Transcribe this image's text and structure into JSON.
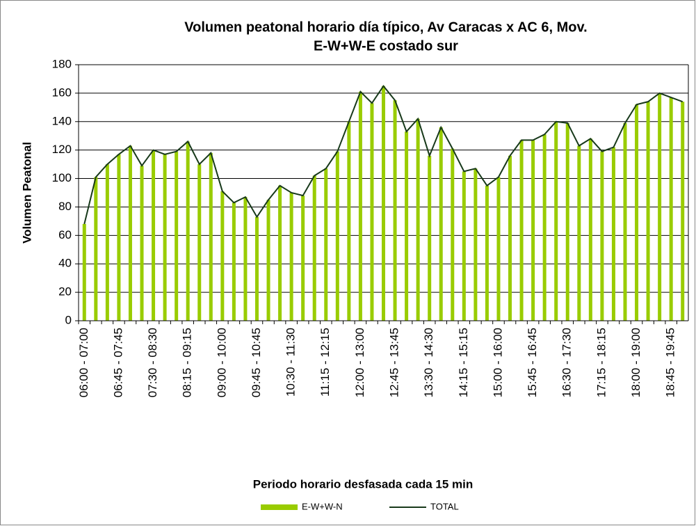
{
  "chart_data": {
    "type": "bar",
    "title": [
      "Volumen peatonal horario  día  típico, Av Caracas x AC 6, Mov.",
      "E-W+W-E costado sur"
    ],
    "x_label": "Periodo horario desfasada cada 15 min",
    "y_label": "Volumen  Peatonal",
    "categories": [
      "06:00 - 07:00",
      null,
      null,
      "06:45 - 07:45",
      null,
      null,
      "07:30 - 08:30",
      null,
      null,
      "08:15 - 09:15",
      null,
      null,
      "09:00 - 10:00",
      null,
      null,
      "09:45 - 10:45",
      null,
      null,
      "10:30 - 11:30",
      null,
      null,
      "11:15 - 12:15",
      null,
      null,
      "12:00 - 13:00",
      null,
      null,
      "12:45 - 13:45",
      null,
      null,
      "13:30 - 14:30",
      null,
      null,
      "14:15 - 15:15",
      null,
      null,
      "15:00 - 16:00",
      null,
      null,
      "15:45 - 16:45",
      null,
      null,
      "16:30 - 17:30",
      null,
      null,
      "17:15 - 18:15",
      null,
      null,
      "18:00 - 19:00",
      null,
      null,
      "18:45 - 19:45",
      null
    ],
    "series": [
      {
        "name": "E-W+W-N",
        "type": "bar",
        "color": "#99cc00",
        "values": [
          68,
          101,
          110,
          117,
          123,
          109,
          120,
          117,
          119,
          126,
          110,
          118,
          91,
          83,
          87,
          73,
          85,
          95,
          90,
          88,
          102,
          107,
          119,
          140,
          161,
          153,
          165,
          155,
          133,
          142,
          116,
          136,
          121,
          105,
          107,
          95,
          101,
          116,
          127,
          127,
          131,
          140,
          139,
          123,
          128,
          119,
          122,
          139,
          152,
          154,
          160,
          157,
          154
        ]
      },
      {
        "name": "TOTAL",
        "type": "line",
        "color": "#17391a",
        "values": [
          68,
          101,
          110,
          117,
          123,
          109,
          120,
          117,
          119,
          126,
          110,
          118,
          91,
          83,
          87,
          73,
          85,
          95,
          90,
          88,
          102,
          107,
          119,
          140,
          161,
          153,
          165,
          155,
          133,
          142,
          116,
          136,
          121,
          105,
          107,
          95,
          101,
          116,
          127,
          127,
          131,
          140,
          139,
          123,
          128,
          119,
          122,
          139,
          152,
          154,
          160,
          157,
          154
        ]
      }
    ],
    "ylim": [
      0,
      180
    ],
    "yticks": [
      0,
      20,
      40,
      60,
      80,
      100,
      120,
      140,
      160,
      180
    ],
    "grid": true,
    "legend": "bottom"
  }
}
